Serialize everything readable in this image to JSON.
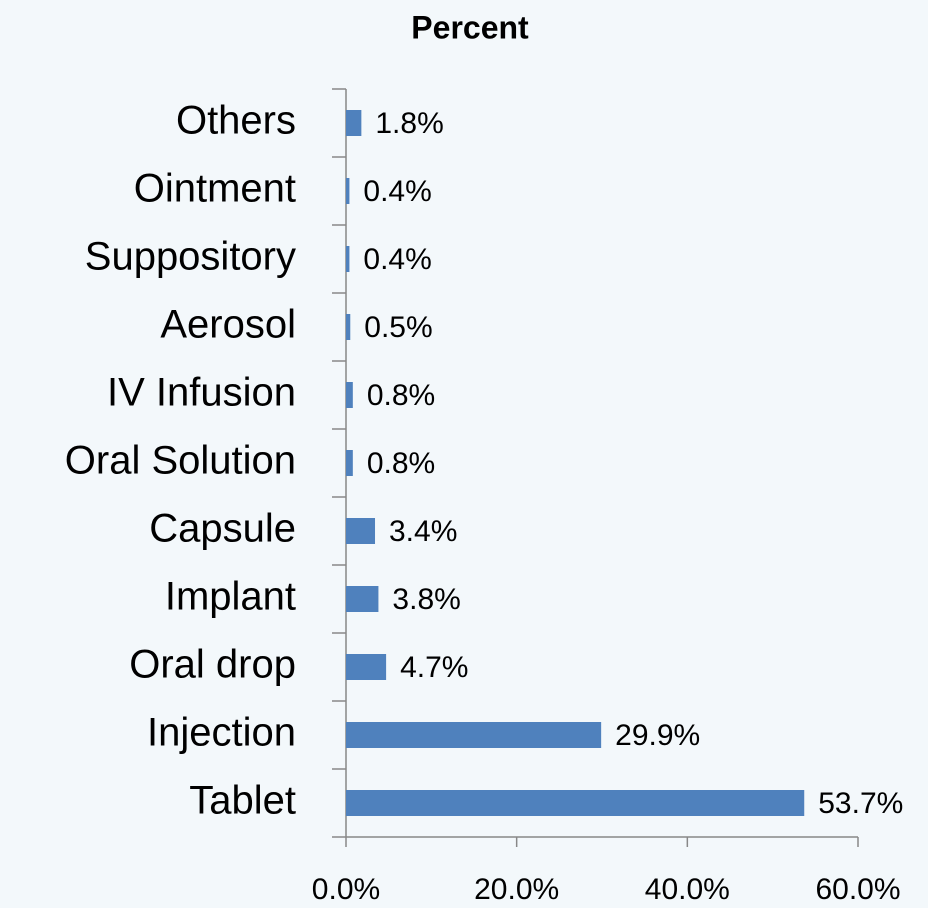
{
  "chart_data": {
    "type": "bar",
    "orientation": "horizontal",
    "title": "Percent",
    "categories": [
      "Others",
      "Ointment",
      "Suppository",
      "Aerosol",
      "IV Infusion",
      "Oral Solution",
      "Capsule",
      "Implant",
      "Oral drop",
      "Injection",
      "Tablet"
    ],
    "values": [
      1.8,
      0.4,
      0.4,
      0.5,
      0.8,
      0.8,
      3.4,
      3.8,
      4.7,
      29.9,
      53.7
    ],
    "value_labels": [
      "1.8%",
      "0.4%",
      "0.4%",
      "0.5%",
      "0.8%",
      "0.8%",
      "3.4%",
      "3.8%",
      "4.7%",
      "29.9%",
      "53.7%"
    ],
    "color": "#4f81bd",
    "xlim": [
      0,
      60
    ],
    "xticks": [
      {
        "value": 0,
        "label": "0.0%"
      },
      {
        "value": 20,
        "label": "20.0%"
      },
      {
        "value": 40,
        "label": "40.0%"
      },
      {
        "value": 60,
        "label": "60.0%"
      }
    ],
    "grid": false
  }
}
